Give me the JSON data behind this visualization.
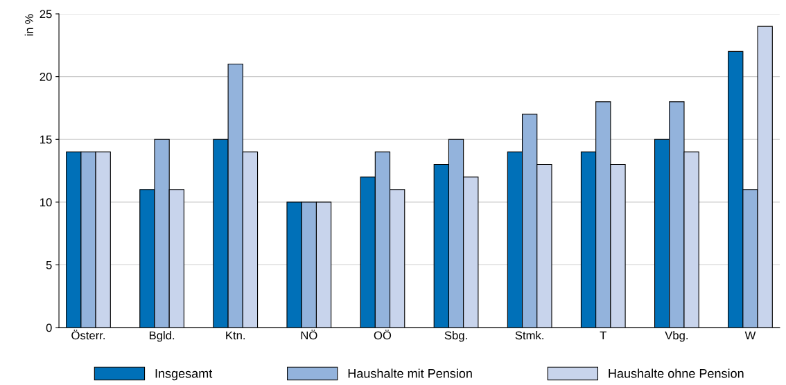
{
  "chart_data": {
    "type": "bar",
    "ylabel": "in %",
    "categories": [
      "Österr.",
      "Bgld.",
      "Ktn.",
      "NÖ",
      "OÖ",
      "Sbg.",
      "Stmk.",
      "T",
      "Vbg.",
      "W"
    ],
    "series": [
      {
        "name": "Insgesamt",
        "color": "#0070b8",
        "values": [
          14,
          11,
          15,
          10,
          12,
          13,
          14,
          14,
          15,
          22
        ]
      },
      {
        "name": "Haushalte mit Pension",
        "color": "#93b3dc",
        "values": [
          14,
          15,
          21,
          10,
          14,
          15,
          17,
          18,
          18,
          11
        ]
      },
      {
        "name": "Haushalte ohne Pension",
        "color": "#c8d4ec",
        "values": [
          14,
          11,
          14,
          10,
          11,
          12,
          13,
          13,
          14,
          24
        ]
      }
    ],
    "ylim": [
      0,
      25
    ],
    "yticks": [
      0,
      5,
      10,
      15,
      20,
      25
    ],
    "grid": "y",
    "legend": "bottom"
  }
}
